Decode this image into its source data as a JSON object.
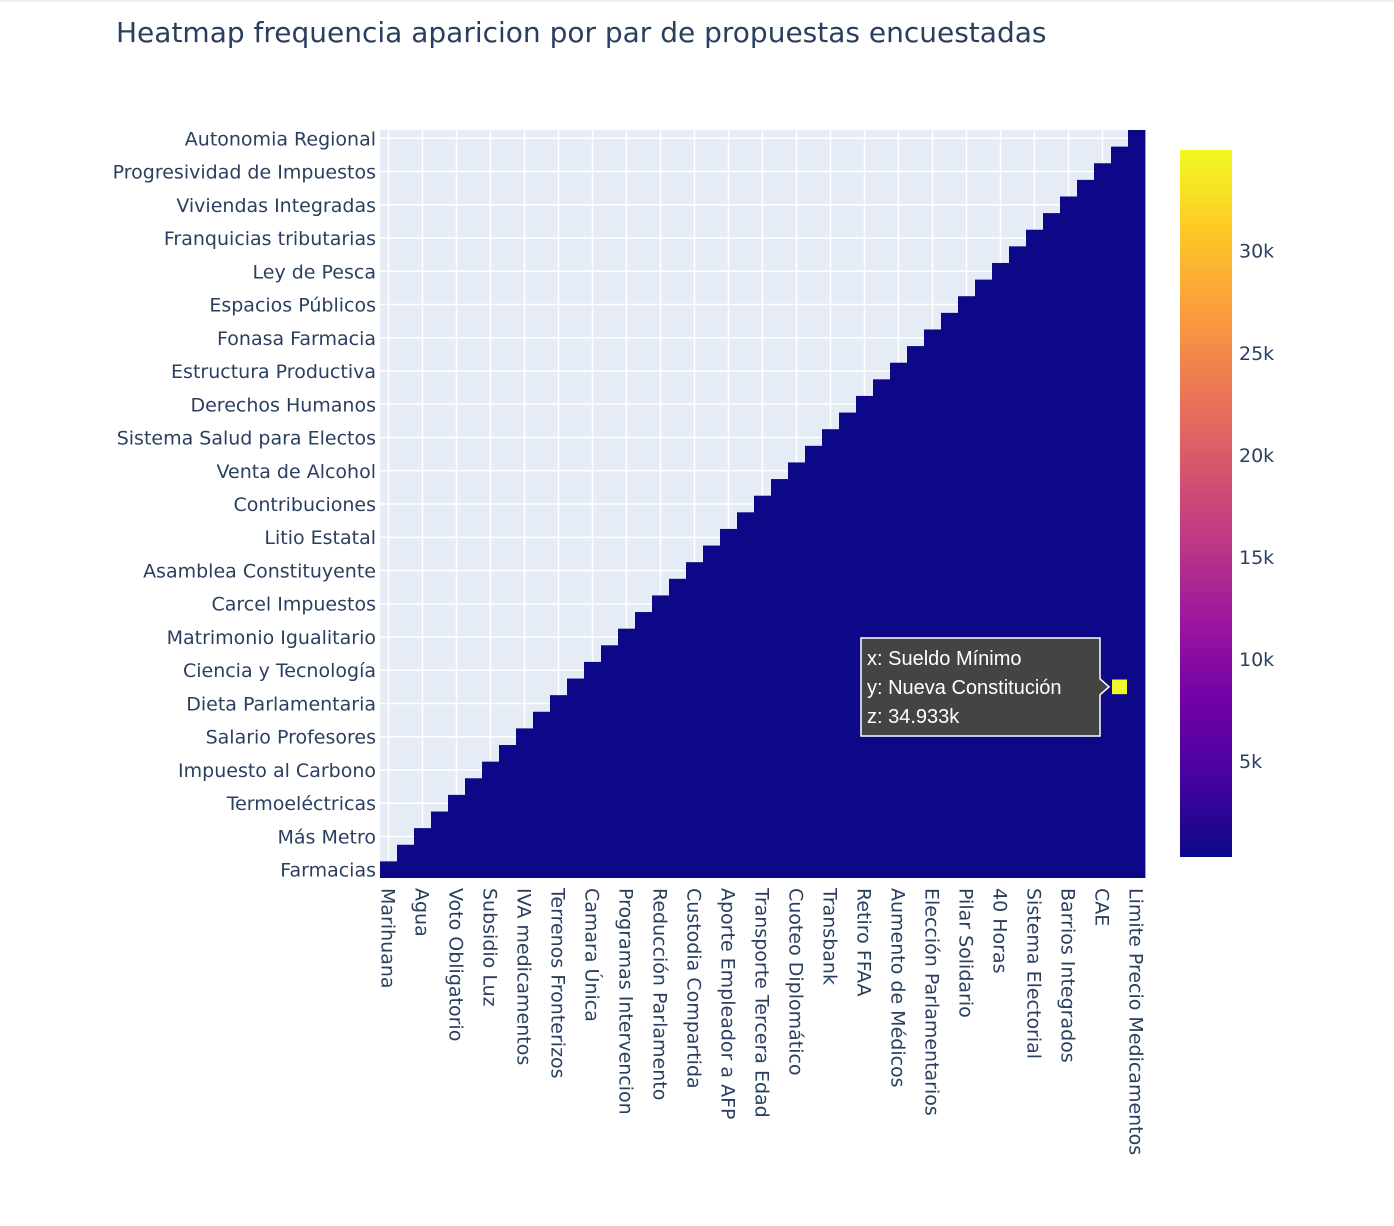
{
  "chart_data": {
    "type": "heatmap",
    "title": "Heatmap frequencia aparicion por par de propuestas encuestadas",
    "x_tick_labels": [
      "Marihuana",
      "Agua",
      "Voto Obligatorio",
      "Subsidio Luz",
      "IVA medicamentos",
      "Terrenos Fronterizos",
      "Camara Única",
      "Programas Intervencion",
      "Reducción Parlamento",
      "Custodia Compartida",
      "Aporte Empleador a AFP",
      "Transporte Tercera Edad",
      "Cuoteo Diplomático",
      "Transbank",
      "Retiro FFAA",
      "Aumento de Médicos",
      "Elección Parlamentarios",
      "Pilar Solidario",
      "40 Horas",
      "Sistema Electorial",
      "Barrios Integrados",
      "CAE",
      "Limite Precio Medicamentos"
    ],
    "y_tick_labels": [
      "Farmacias",
      "Más Metro",
      "Termoeléctricas",
      "Impuesto al Carbono",
      "Salario Profesores",
      "Dieta Parlamentaria",
      "Ciencia y Tecnología",
      "Matrimonio Igualitario",
      "Carcel Impuestos",
      "Asamblea Constituyente",
      "Litio Estatal",
      "Contribuciones ",
      "Venta de Alcohol",
      "Sistema Salud para Electos",
      "Derechos Humanos",
      "Estructura Productiva",
      "Fonasa Farmacia",
      "Espacios Públicos",
      "Ley de Pesca",
      "Franquicias tributarias",
      "Viviendas Integradas",
      "Progresividad de Impuestos",
      "Autonomia Regional"
    ],
    "n_categories": 45,
    "tick_every": 2,
    "masked": "upper triangle (empty)",
    "typical_value": 300,
    "zmin": 300,
    "zmax": 34933,
    "colorscale": [
      "#0d0887",
      "#46039f",
      "#7201a8",
      "#9c179e",
      "#bd3786",
      "#d8576b",
      "#ed7953",
      "#fb9f3a",
      "#fdca26",
      "#f0f921"
    ],
    "colorbar": {
      "tick_values": [
        5000,
        10000,
        15000,
        20000,
        25000,
        30000
      ],
      "tick_labels": [
        "5k",
        "10k",
        "15k",
        "20k",
        "25k",
        "30k"
      ]
    },
    "highlight": {
      "x_label": "Sueldo Mínimo",
      "y_label": "Nueva Constitución",
      "x_index": 43,
      "y_index": 11,
      "value": 34933
    },
    "grid": true
  },
  "hover_label": {
    "x_line": "x: Sueldo Mínimo",
    "y_line": "y: Nueva Constitución",
    "z_line": "z: 34.933k"
  },
  "colors": {
    "plot_bg": "#e5ecf6",
    "grid": "#ffffff",
    "text": "#2a3f5f",
    "tooltip_bg": "#444444"
  }
}
